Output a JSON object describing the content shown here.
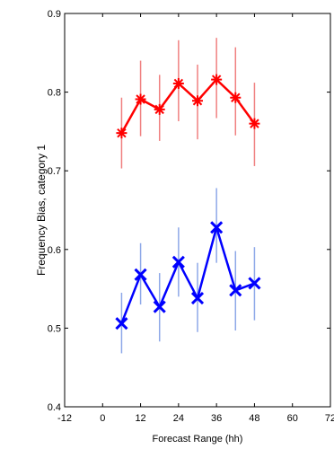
{
  "chart_data": {
    "type": "line",
    "title": "",
    "xlabel": "Forecast Range (hh)",
    "ylabel": "Frequency Bias, category 1",
    "xlim": [
      -12,
      72
    ],
    "ylim": [
      0.4,
      0.9
    ],
    "x_ticks": [
      -12,
      0,
      12,
      24,
      36,
      48,
      60,
      72
    ],
    "x_tick_labels": [
      "-12",
      "0",
      "12",
      "24",
      "36",
      "48",
      "60",
      "72"
    ],
    "y_ticks": [
      0.4,
      0.5,
      0.6,
      0.7,
      0.8,
      0.9
    ],
    "y_tick_labels": [
      "0.4",
      "0.5",
      "0.6",
      "0.7",
      "0.8",
      "0.9"
    ],
    "grid": false,
    "legend": "none",
    "x": [
      6,
      12,
      18,
      24,
      30,
      36,
      42,
      48
    ],
    "series": [
      {
        "color": "#ff0000",
        "error_color": "#f08080",
        "marker": "star",
        "values": [
          0.748,
          0.791,
          0.778,
          0.811,
          0.789,
          0.816,
          0.793,
          0.76
        ],
        "lower": [
          0.703,
          0.744,
          0.738,
          0.763,
          0.74,
          0.767,
          0.745,
          0.706
        ],
        "upper": [
          0.793,
          0.84,
          0.822,
          0.866,
          0.835,
          0.869,
          0.857,
          0.812
        ]
      },
      {
        "color": "#0000ff",
        "error_color": "#8ea8e8",
        "marker": "x",
        "values": [
          0.506,
          0.568,
          0.527,
          0.584,
          0.538,
          0.628,
          0.548,
          0.557
        ],
        "lower": [
          0.468,
          0.53,
          0.483,
          0.54,
          0.495,
          0.583,
          0.497,
          0.51
        ],
        "upper": [
          0.545,
          0.608,
          0.57,
          0.628,
          0.583,
          0.678,
          0.598,
          0.603
        ]
      }
    ]
  }
}
